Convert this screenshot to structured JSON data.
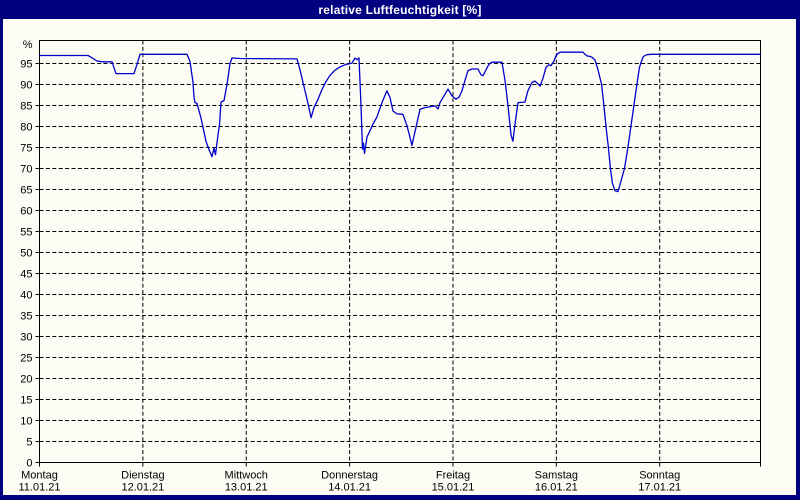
{
  "window": {
    "title": "relative Luftfeuchtigkeit [%]"
  },
  "colors": {
    "frame": "#000080",
    "title_text": "#ffffff",
    "plot_background": "#fcfcf4",
    "grid": "#000000",
    "axis": "#000000",
    "series_line": "#0000cc"
  },
  "chart_data": {
    "type": "line",
    "title": "relative Luftfeuchtigkeit [%]",
    "ylabel": "%",
    "y_unit": "%",
    "ylim": [
      0,
      100.2
    ],
    "y_ticks": [
      0,
      5,
      10,
      15,
      20,
      25,
      30,
      35,
      40,
      45,
      50,
      55,
      60,
      65,
      70,
      75,
      80,
      85,
      90,
      95
    ],
    "xlim_days": [
      0,
      6.975
    ],
    "x_unit": "days from Monday 11.01.21 00:00",
    "grid": true,
    "legend_position": "none",
    "x_days": [
      {
        "name": "Montag",
        "date": "11.01.21"
      },
      {
        "name": "Dienstag",
        "date": "12.01.21"
      },
      {
        "name": "Mittwoch",
        "date": "13.01.21"
      },
      {
        "name": "Donnerstag",
        "date": "14.01.21"
      },
      {
        "name": "Freitag",
        "date": "15.01.21"
      },
      {
        "name": "Samstag",
        "date": "16.01.21"
      },
      {
        "name": "Sonntag",
        "date": "17.01.21"
      }
    ],
    "series": [
      {
        "name": "relative Luftfeuchtigkeit",
        "color": "#0000cc",
        "points": [
          [
            0.0,
            96.9
          ],
          [
            0.469,
            96.9
          ],
          [
            0.498,
            96.5
          ],
          [
            0.556,
            95.6
          ],
          [
            0.614,
            95.4
          ],
          [
            0.701,
            95.4
          ],
          [
            0.721,
            94.0
          ],
          [
            0.74,
            92.6
          ],
          [
            0.914,
            92.6
          ],
          [
            0.943,
            94.8
          ],
          [
            0.972,
            97.2
          ],
          [
            1.427,
            97.2
          ],
          [
            1.456,
            95.5
          ],
          [
            1.485,
            90.5
          ],
          [
            1.495,
            87.0
          ],
          [
            1.504,
            85.7
          ],
          [
            1.524,
            85.5
          ],
          [
            1.562,
            82.0
          ],
          [
            1.611,
            76.5
          ],
          [
            1.64,
            74.5
          ],
          [
            1.669,
            72.8
          ],
          [
            1.688,
            74.8
          ],
          [
            1.703,
            73.3
          ],
          [
            1.727,
            78.0
          ],
          [
            1.741,
            80.5
          ],
          [
            1.756,
            85.8
          ],
          [
            1.785,
            86.2
          ],
          [
            1.814,
            90.0
          ],
          [
            1.843,
            95.0
          ],
          [
            1.862,
            96.3
          ],
          [
            1.94,
            96.2
          ],
          [
            2.491,
            96.1
          ],
          [
            2.52,
            93.5
          ],
          [
            2.559,
            89.5
          ],
          [
            2.588,
            86.5
          ],
          [
            2.627,
            82.1
          ],
          [
            2.656,
            84.5
          ],
          [
            2.694,
            86.5
          ],
          [
            2.733,
            88.8
          ],
          [
            2.772,
            90.7
          ],
          [
            2.81,
            92.2
          ],
          [
            2.859,
            93.4
          ],
          [
            2.907,
            94.2
          ],
          [
            2.956,
            94.7
          ],
          [
            3.023,
            95.1
          ],
          [
            3.052,
            96.3
          ],
          [
            3.072,
            95.9
          ],
          [
            3.091,
            96.3
          ],
          [
            3.11,
            85.0
          ],
          [
            3.125,
            74.6
          ],
          [
            3.134,
            76.0
          ],
          [
            3.144,
            73.6
          ],
          [
            3.168,
            77.5
          ],
          [
            3.197,
            79.0
          ],
          [
            3.226,
            80.6
          ],
          [
            3.265,
            82.3
          ],
          [
            3.313,
            85.7
          ],
          [
            3.361,
            88.5
          ],
          [
            3.39,
            87.0
          ],
          [
            3.42,
            83.7
          ],
          [
            3.458,
            83.0
          ],
          [
            3.516,
            82.9
          ],
          [
            3.555,
            80.2
          ],
          [
            3.584,
            77.4
          ],
          [
            3.603,
            75.5
          ],
          [
            3.642,
            79.8
          ],
          [
            3.681,
            84.1
          ],
          [
            3.729,
            84.5
          ],
          [
            3.826,
            84.9
          ],
          [
            3.855,
            84.2
          ],
          [
            3.874,
            85.7
          ],
          [
            3.923,
            87.7
          ],
          [
            3.952,
            88.9
          ],
          [
            3.99,
            87.3
          ],
          [
            4.029,
            86.5
          ],
          [
            4.058,
            87.0
          ],
          [
            4.087,
            88.5
          ],
          [
            4.116,
            91.0
          ],
          [
            4.145,
            93.3
          ],
          [
            4.184,
            93.7
          ],
          [
            4.242,
            93.7
          ],
          [
            4.271,
            92.3
          ],
          [
            4.29,
            92.1
          ],
          [
            4.319,
            93.5
          ],
          [
            4.348,
            94.8
          ],
          [
            4.377,
            95.3
          ],
          [
            4.474,
            95.3
          ],
          [
            4.503,
            91.0
          ],
          [
            4.532,
            85.0
          ],
          [
            4.561,
            78.0
          ],
          [
            4.58,
            76.5
          ],
          [
            4.6,
            80.6
          ],
          [
            4.629,
            85.7
          ],
          [
            4.696,
            85.8
          ],
          [
            4.725,
            88.5
          ],
          [
            4.764,
            90.5
          ],
          [
            4.793,
            90.8
          ],
          [
            4.822,
            90.2
          ],
          [
            4.842,
            89.6
          ],
          [
            4.871,
            91.5
          ],
          [
            4.9,
            94.1
          ],
          [
            4.929,
            94.7
          ],
          [
            4.948,
            94.5
          ],
          [
            4.977,
            95.6
          ],
          [
            4.996,
            96.8
          ],
          [
            5.016,
            97.4
          ],
          [
            5.035,
            97.7
          ],
          [
            5.258,
            97.7
          ],
          [
            5.277,
            97.2
          ],
          [
            5.296,
            96.8
          ],
          [
            5.325,
            96.7
          ],
          [
            5.344,
            96.5
          ],
          [
            5.354,
            96.3
          ],
          [
            5.374,
            95.8
          ],
          [
            5.403,
            93.5
          ],
          [
            5.438,
            90.0
          ],
          [
            5.46,
            85.0
          ],
          [
            5.48,
            80.0
          ],
          [
            5.504,
            75.0
          ],
          [
            5.523,
            70.0
          ],
          [
            5.542,
            66.5
          ],
          [
            5.567,
            64.7
          ],
          [
            5.596,
            64.5
          ],
          [
            5.625,
            67.0
          ],
          [
            5.659,
            70.0
          ],
          [
            5.692,
            75.0
          ],
          [
            5.721,
            80.0
          ],
          [
            5.75,
            85.0
          ],
          [
            5.779,
            90.0
          ],
          [
            5.803,
            94.0
          ],
          [
            5.823,
            95.5
          ],
          [
            5.842,
            96.7
          ],
          [
            5.876,
            97.1
          ],
          [
            5.915,
            97.2
          ],
          [
            6.002,
            97.2
          ],
          [
            6.975,
            97.2
          ]
        ]
      }
    ]
  }
}
